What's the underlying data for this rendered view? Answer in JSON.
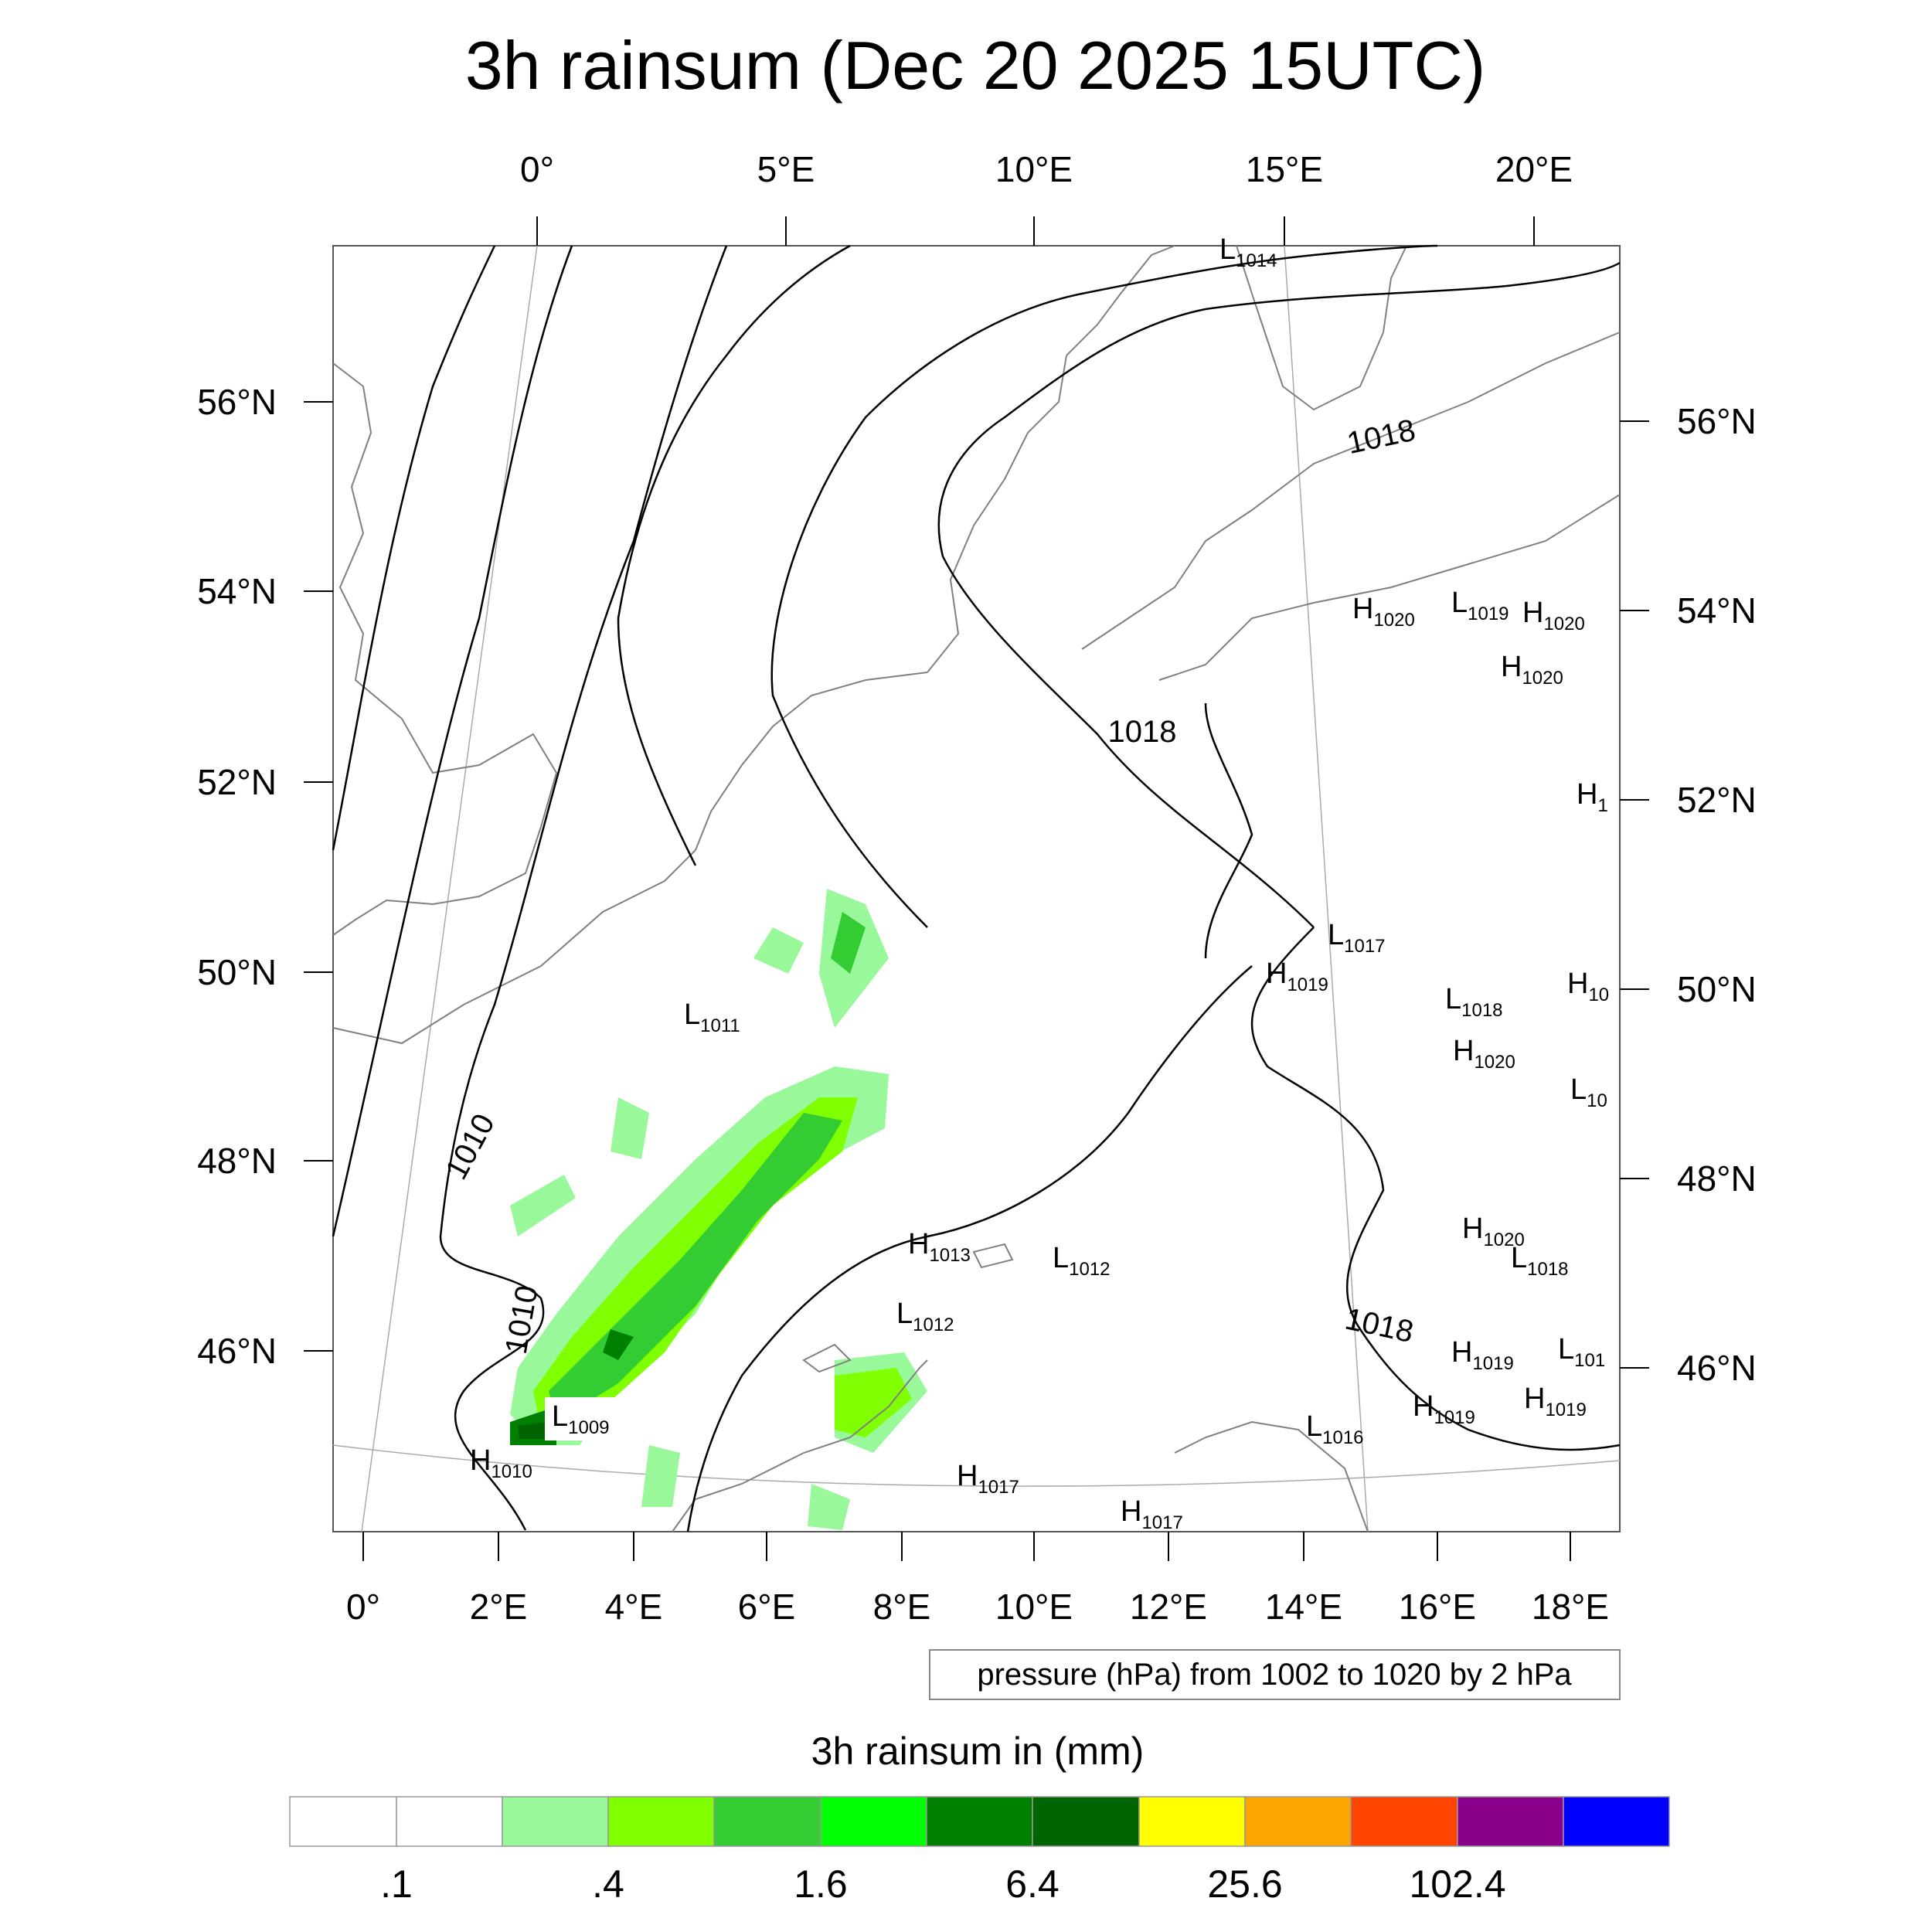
{
  "title": "3h rainsum (Dec 20 2025 15UTC)",
  "top_lon_labels": [
    "0°",
    "5°E",
    "10°E",
    "15°E",
    "20°E"
  ],
  "bottom_lon_labels": [
    "0°",
    "2°E",
    "4°E",
    "6°E",
    "8°E",
    "10°E",
    "12°E",
    "14°E",
    "16°E",
    "18°E"
  ],
  "left_lat_labels": [
    "56°N",
    "54°N",
    "52°N",
    "50°N",
    "48°N",
    "46°N"
  ],
  "right_lat_labels": [
    "56°N",
    "54°N",
    "52°N",
    "50°N",
    "48°N",
    "46°N"
  ],
  "contour_labels": [
    "1010",
    "1010",
    "1018",
    "1018",
    "1018"
  ],
  "pressure_centers": [
    {
      "letter": "L",
      "value": "1014"
    },
    {
      "letter": "H",
      "value": "1020"
    },
    {
      "letter": "L",
      "value": "1019"
    },
    {
      "letter": "H",
      "value": "1020"
    },
    {
      "letter": "H",
      "value": "1020"
    },
    {
      "letter": "H",
      "value": "1"
    },
    {
      "letter": "L",
      "value": "1017"
    },
    {
      "letter": "H",
      "value": "1019"
    },
    {
      "letter": "L",
      "value": "1018"
    },
    {
      "letter": "H",
      "value": "10"
    },
    {
      "letter": "H",
      "value": "1020"
    },
    {
      "letter": "L",
      "value": "10"
    },
    {
      "letter": "L",
      "value": "1011"
    },
    {
      "letter": "H",
      "value": "1013"
    },
    {
      "letter": "L",
      "value": "1012"
    },
    {
      "letter": "L",
      "value": "1012"
    },
    {
      "letter": "H",
      "value": "1020"
    },
    {
      "letter": "L",
      "value": "1018"
    },
    {
      "letter": "H",
      "value": "1019"
    },
    {
      "letter": "L",
      "value": "101"
    },
    {
      "letter": "H",
      "value": "1019"
    },
    {
      "letter": "H",
      "value": "1019"
    },
    {
      "letter": "L",
      "value": "1016"
    },
    {
      "letter": "L",
      "value": "1009"
    },
    {
      "letter": "H",
      "value": "1010"
    },
    {
      "letter": "H",
      "value": "1017"
    },
    {
      "letter": "H",
      "value": "1017"
    }
  ],
  "contour_info": "pressure (hPa) from 1002 to 1020 by 2 hPa",
  "legend_title": "3h rainsum in (mm)",
  "legend_colors": [
    "#ffffff",
    "#ffffff",
    "#99f899",
    "#80ff00",
    "#33cc33",
    "#00ff00",
    "#008000",
    "#006400",
    "#ffff00",
    "#ffa500",
    "#ff4500",
    "#8b008b",
    "#0000ff"
  ],
  "legend_tick_labels": [
    ".1",
    ".4",
    "1.6",
    "6.4",
    "25.6",
    "102.4"
  ],
  "colors": {
    "contour": "#000000",
    "coast": "#808080",
    "grid": "#999999"
  }
}
